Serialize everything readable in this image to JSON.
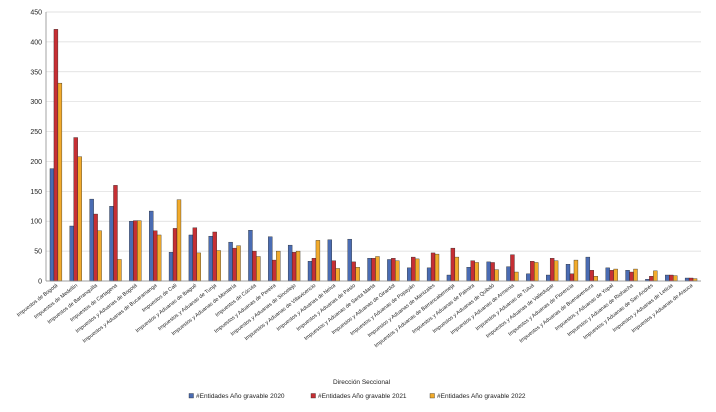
{
  "chart_data": {
    "type": "bar",
    "xlabel": "Dirección Seccional",
    "ylabel": "",
    "ylim": [
      0,
      450
    ],
    "yticks": [
      0,
      50,
      100,
      150,
      200,
      250,
      300,
      350,
      400,
      450
    ],
    "grid": true,
    "legend_position": "bottom",
    "categories": [
      "Impuestos de Bogotá",
      "Impuestos de Medellín",
      "Impuestos de Barranquilla",
      "Impuestos de Cartagena",
      "Impuestos y Aduanas de Bogotá",
      "Impuestos y Aduanas de Bucaramanga",
      "Impuestos de Cali",
      "Impuestos y Aduanas de Ibagué",
      "Impuestos y Aduanas de Tunja",
      "Impuestos y Aduanas de Montería",
      "Impuestos de Cúcuta",
      "Impuestos y Aduanas de Pereira",
      "Impuestos y Aduanas de Sincelejo",
      "Impuestos y Aduanas de Villavicencio",
      "Impuestos y Aduanas de Neiva",
      "Impuestos y Aduanas de Pasto",
      "Impuestos y Aduanas de Santa Marta",
      "Impuestos y Aduanas de Girardot",
      "Impuestos y Aduanas de Popayán",
      "Impuestos y Aduanas de Manizales",
      "Impuestos y Aduanas de Barrancabermeja",
      "Impuestos y Aduanas de Palmira",
      "Impuestos y Aduanas de Quibdó",
      "Impuestos y Aduanas de Armenia",
      "Impuestos y Aduanas de Tuluá",
      "Impuestos y Aduanas de Valledupar",
      "Impuestos y Aduanas de Florencia",
      "Impuestos y Aduanas de Buenaventura",
      "Impuestos y Aduanas de Yopal",
      "Impuestos y Aduanas de Riohacha",
      "Impuestos y Aduanas de San Andrés",
      "Impuestos y Aduanas de Leticia",
      "Impuestos y Aduanas de Arauca"
    ],
    "series": [
      {
        "name": "#Entidades Año gravable 2020",
        "color": "#4a6cb3",
        "values": [
          188,
          92,
          137,
          125,
          100,
          117,
          48,
          77,
          75,
          65,
          85,
          74,
          60,
          33,
          69,
          70,
          38,
          36,
          22,
          22,
          10,
          23,
          32,
          24,
          12,
          10,
          28,
          40,
          22,
          18,
          3,
          10,
          5
        ]
      },
      {
        "name": "#Entidades Año gravable 2021",
        "color": "#c62f34",
        "values": [
          421,
          240,
          112,
          160,
          101,
          84,
          88,
          89,
          82,
          55,
          50,
          35,
          48,
          38,
          34,
          32,
          38,
          38,
          40,
          47,
          55,
          34,
          31,
          44,
          33,
          38,
          12,
          18,
          18,
          15,
          8,
          10,
          5
        ]
      },
      {
        "name": "#Entidades Año gravable 2022",
        "color": "#f2ab2c",
        "values": [
          331,
          208,
          84,
          36,
          101,
          77,
          136,
          47,
          51,
          59,
          41,
          50,
          50,
          68,
          21,
          23,
          41,
          34,
          37,
          45,
          40,
          31,
          19,
          15,
          31,
          34,
          35,
          8,
          20,
          20,
          17,
          9,
          4
        ]
      }
    ]
  }
}
